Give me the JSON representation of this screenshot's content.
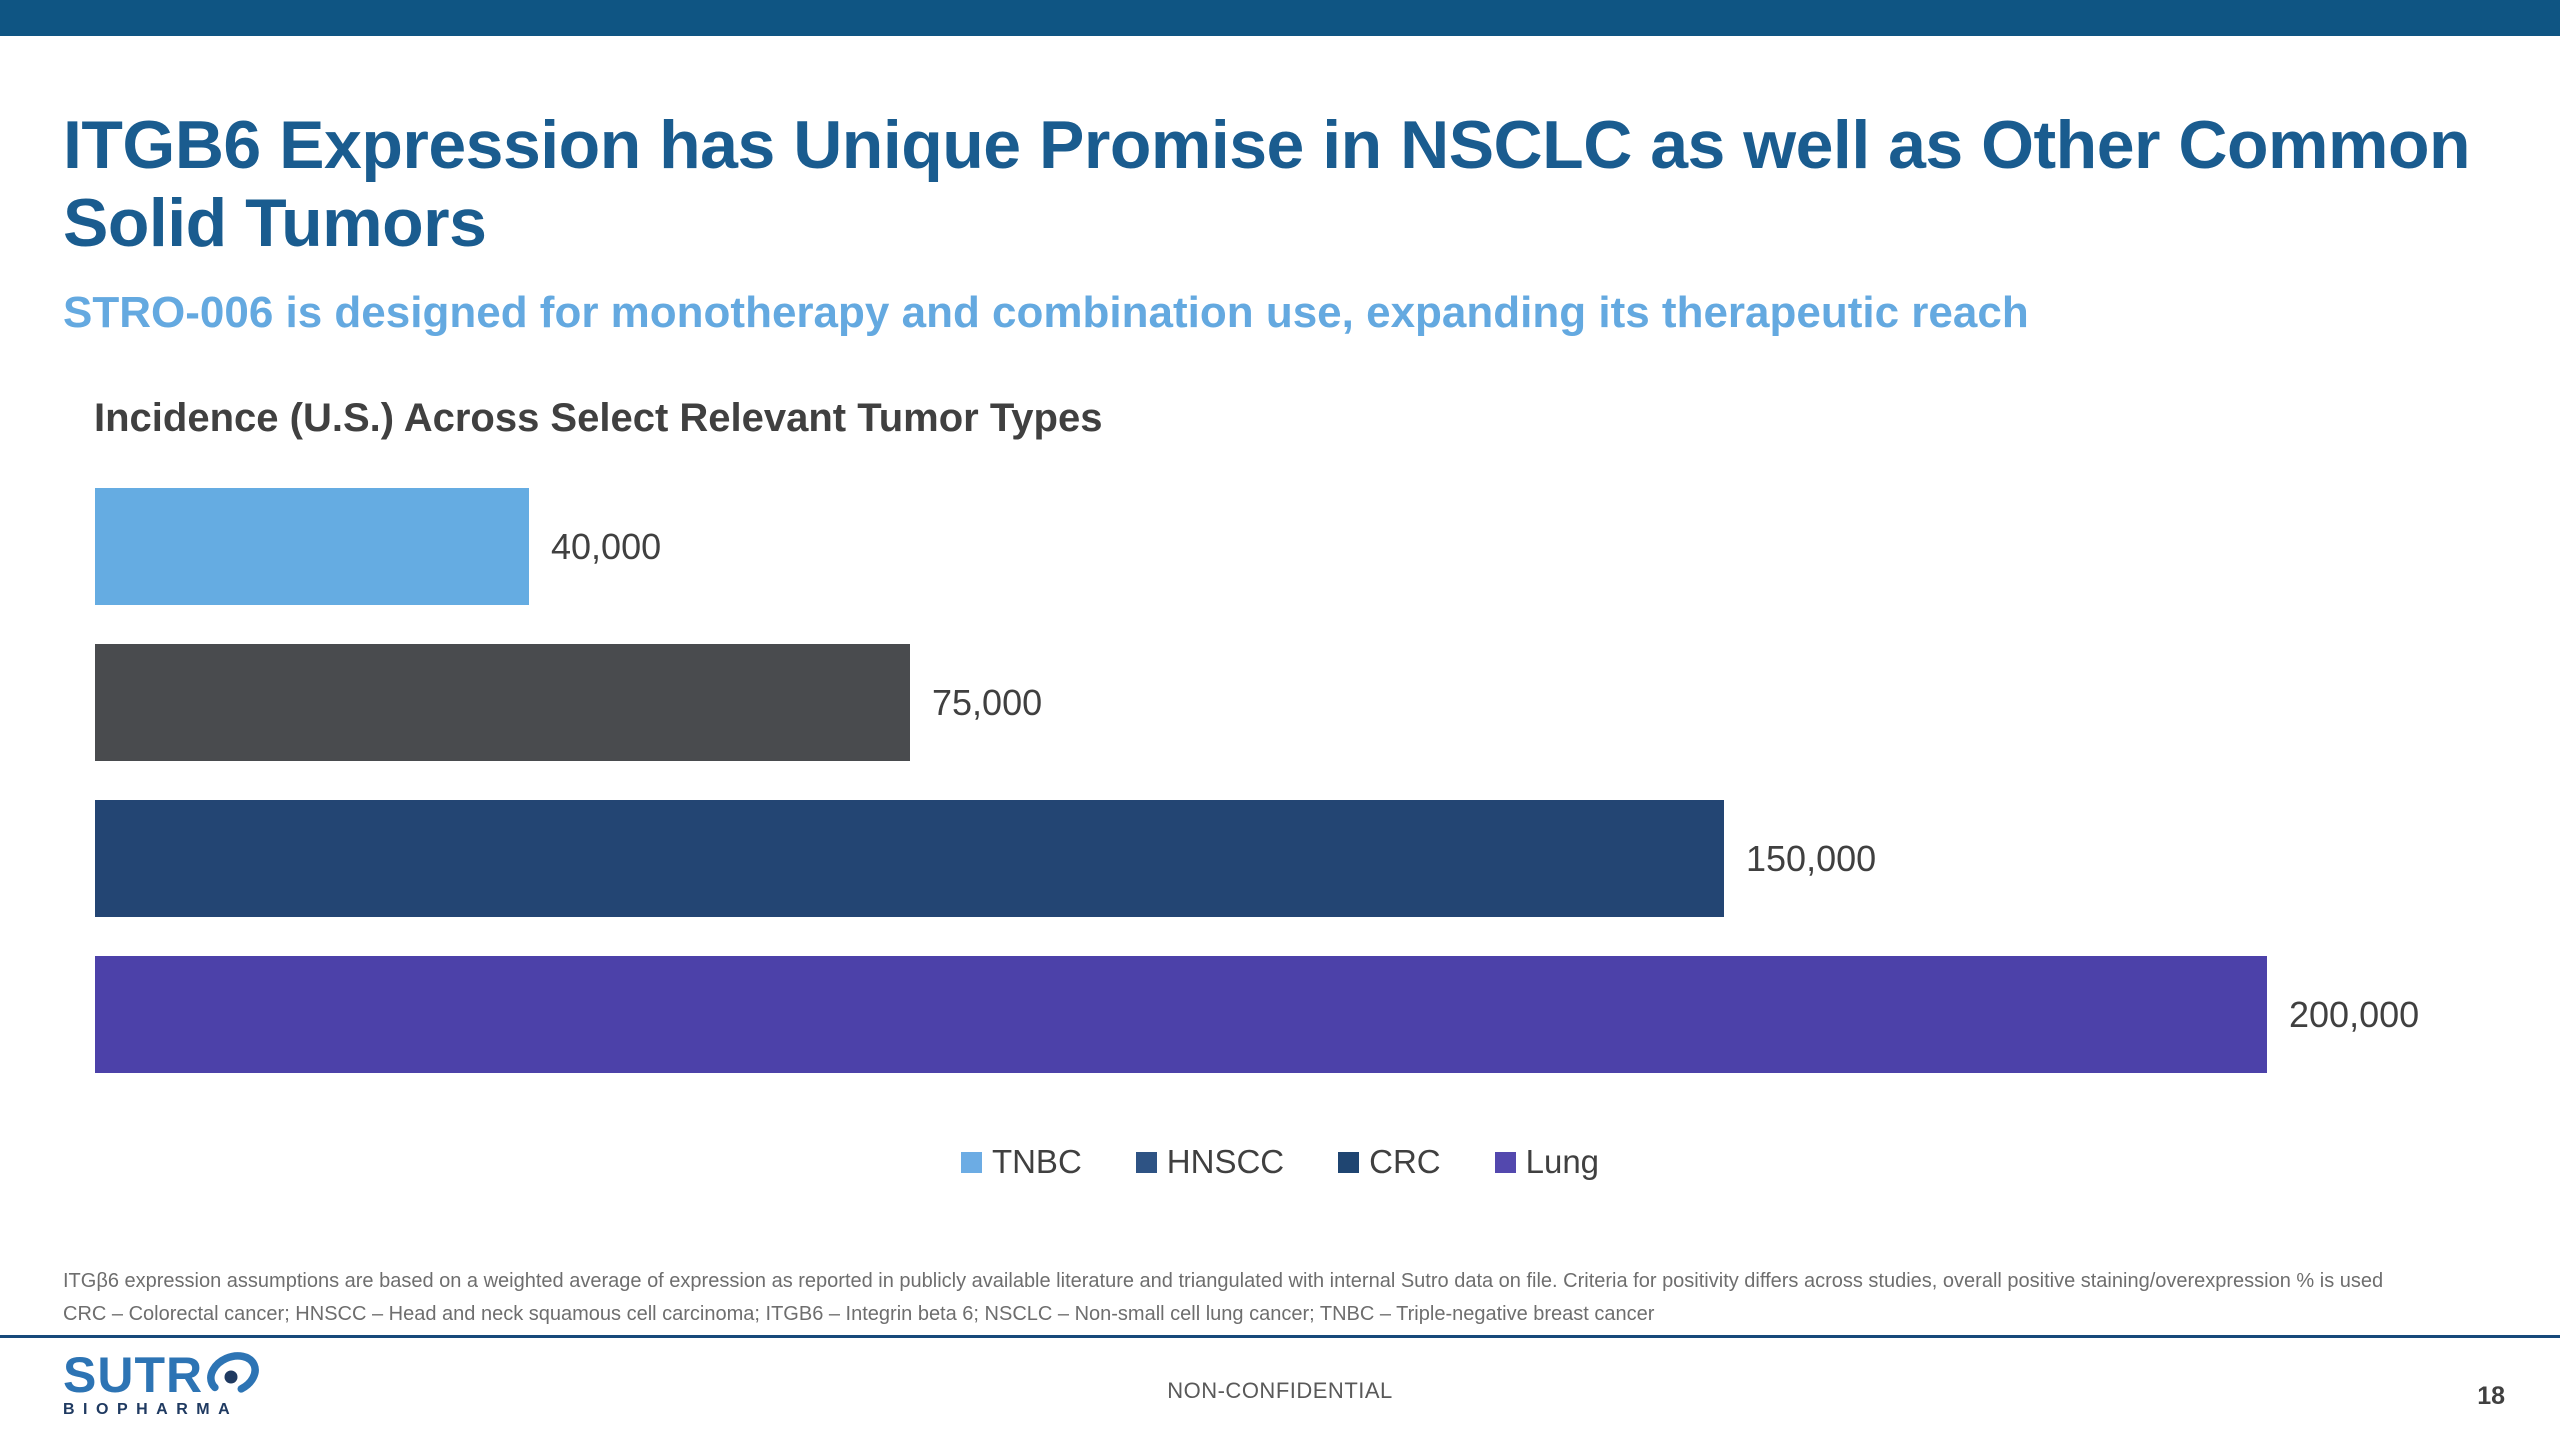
{
  "slide": {
    "title": "ITGB6 Expression has Unique Promise in NSCLC as well as Other Common Solid Tumors",
    "subtitle": "STRO-006 is designed for monotherapy and combination use, expanding its therapeutic reach",
    "footnotes": [
      "ITGβ6 expression assumptions are based on a weighted average of expression as reported in publicly available literature and triangulated with internal Sutro data on file. Criteria for positivity differs across studies, overall positive staining/overexpression % is used",
      "CRC – Colorectal cancer; HNSCC – Head and neck squamous cell carcinoma; ITGB6 – Integrin beta 6; NSCLC – Non-small cell lung cancer; TNBC – Triple-negative breast cancer"
    ],
    "footer_label": "NON-CONFIDENTIAL",
    "page_number": "18",
    "logo": {
      "name": "Sutro Biopharma",
      "word_prefix": "SUTR",
      "sub_text": "BIOPHARMA"
    },
    "colors": {
      "top_bar": "#0F5583",
      "title": "#1A5C8F",
      "subtitle": "#64A9E0",
      "chart_title": "#404040",
      "value_label": "#404040",
      "footnote": "#6E6E6E",
      "separator": "#17497A",
      "footer_text": "#595959",
      "logo_blue": "#2D74B4",
      "logo_navy": "#1F3A61"
    }
  },
  "chart_data": {
    "type": "bar",
    "orientation": "horizontal",
    "title": "Incidence (U.S.) Across Select Relevant Tumor Types",
    "xlabel": "",
    "ylabel": "",
    "categories": [
      "TNBC",
      "HNSCC",
      "CRC",
      "Lung"
    ],
    "values": [
      40000,
      75000,
      150000,
      200000
    ],
    "value_labels": [
      "40,000",
      "75,000",
      "150,000",
      "200,000"
    ],
    "bar_colors": [
      "#65ACE2",
      "#494B4E",
      "#234573",
      "#4C41A9"
    ],
    "legend": [
      {
        "label": "TNBC",
        "color": "#6CACE4"
      },
      {
        "label": "HNSCC",
        "color": "#2E5384"
      },
      {
        "label": "CRC",
        "color": "#1F4571"
      },
      {
        "label": "Lung",
        "color": "#5348AE"
      }
    ],
    "xlim": [
      0,
      200000
    ],
    "grid": false,
    "legend_position": "bottom",
    "axis_labels_shown": false
  }
}
